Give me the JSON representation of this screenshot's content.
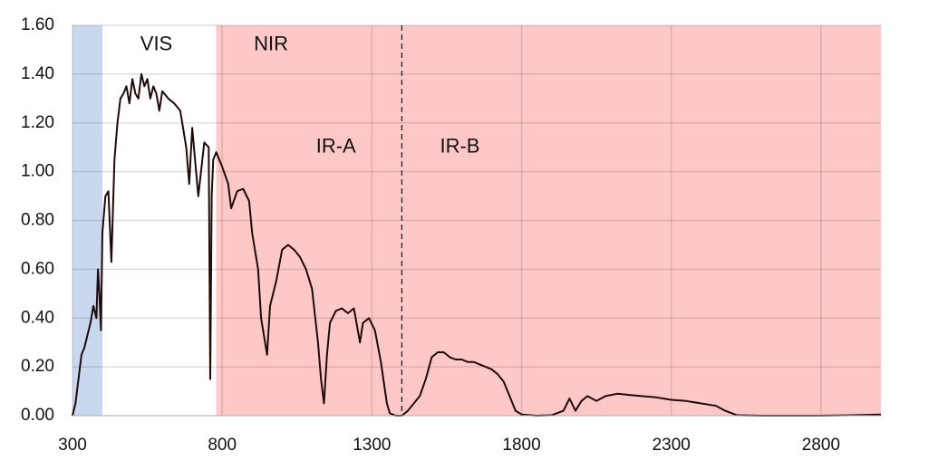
{
  "chart_data": {
    "type": "line",
    "color": "#1f0a0a",
    "x": [
      300,
      310,
      320,
      330,
      340,
      350,
      360,
      370,
      380,
      385,
      390,
      395,
      400,
      410,
      420,
      430,
      440,
      450,
      460,
      470,
      480,
      490,
      500,
      510,
      520,
      530,
      540,
      550,
      560,
      570,
      580,
      590,
      600,
      620,
      640,
      660,
      680,
      690,
      700,
      720,
      740,
      755,
      760,
      765,
      770,
      780,
      800,
      820,
      830,
      850,
      870,
      890,
      900,
      920,
      930,
      950,
      960,
      980,
      1000,
      1020,
      1040,
      1060,
      1080,
      1100,
      1120,
      1130,
      1140,
      1150,
      1160,
      1180,
      1200,
      1220,
      1240,
      1260,
      1270,
      1290,
      1310,
      1330,
      1350,
      1360,
      1380,
      1400,
      1420,
      1440,
      1460,
      1480,
      1500,
      1520,
      1540,
      1560,
      1580,
      1600,
      1620,
      1640,
      1660,
      1680,
      1700,
      1720,
      1740,
      1760,
      1780,
      1800,
      1850,
      1900,
      1940,
      1960,
      1980,
      2000,
      2020,
      2050,
      2080,
      2120,
      2160,
      2200,
      2250,
      2300,
      2350,
      2400,
      2450,
      2480,
      2520,
      2600,
      2700,
      2800,
      2900,
      3000
    ],
    "values": [
      0,
      0.05,
      0.15,
      0.25,
      0.28,
      0.33,
      0.38,
      0.45,
      0.4,
      0.6,
      0.5,
      0.35,
      0.75,
      0.9,
      0.92,
      0.63,
      1.05,
      1.2,
      1.3,
      1.32,
      1.35,
      1.28,
      1.38,
      1.32,
      1.3,
      1.4,
      1.35,
      1.38,
      1.3,
      1.35,
      1.32,
      1.25,
      1.33,
      1.3,
      1.28,
      1.25,
      1.1,
      0.95,
      1.18,
      0.9,
      1.12,
      1.1,
      0.15,
      0.9,
      1.05,
      1.08,
      1.02,
      0.95,
      0.85,
      0.92,
      0.93,
      0.88,
      0.75,
      0.6,
      0.4,
      0.25,
      0.45,
      0.55,
      0.68,
      0.7,
      0.68,
      0.65,
      0.6,
      0.52,
      0.3,
      0.15,
      0.05,
      0.25,
      0.38,
      0.43,
      0.44,
      0.42,
      0.44,
      0.3,
      0.38,
      0.4,
      0.35,
      0.22,
      0.05,
      0.01,
      0,
      0,
      0.02,
      0.05,
      0.08,
      0.15,
      0.24,
      0.26,
      0.26,
      0.24,
      0.23,
      0.23,
      0.22,
      0.22,
      0.21,
      0.2,
      0.19,
      0.17,
      0.14,
      0.08,
      0.02,
      0.005,
      0,
      0.002,
      0.02,
      0.07,
      0.02,
      0.06,
      0.08,
      0.06,
      0.08,
      0.09,
      0.085,
      0.08,
      0.075,
      0.065,
      0.06,
      0.05,
      0.04,
      0.02,
      0.002,
      0,
      0,
      0,
      0.002,
      0.005
    ],
    "xlim": [
      300,
      3000
    ],
    "xticks": [
      300,
      800,
      1300,
      1800,
      2300,
      2800
    ],
    "ylim": [
      0,
      1.6
    ],
    "yticks": [
      {
        "value": 0,
        "label": "0.00"
      },
      {
        "value": 0.2,
        "label": "0.20"
      },
      {
        "value": 0.4,
        "label": "0.40"
      },
      {
        "value": 0.6,
        "label": "0.60"
      },
      {
        "value": 0.8,
        "label": "0.80"
      },
      {
        "value": 1.0,
        "label": "1.00"
      },
      {
        "value": 1.2,
        "label": "1.20"
      },
      {
        "value": 1.4,
        "label": "1.40"
      },
      {
        "value": 1.6,
        "label": "1.60"
      }
    ],
    "grid": true,
    "regions": [
      {
        "start": 300,
        "end": 400,
        "color": "#c9d8ef"
      },
      {
        "start": 780,
        "end": 3000,
        "color": "#ffc8c8"
      }
    ],
    "vline": {
      "x": 1400,
      "style": "dashed"
    },
    "annotations": [
      {
        "text": "VIS",
        "x": 580,
        "y": 1.52
      },
      {
        "text": "NIR",
        "x": 963,
        "y": 1.52
      },
      {
        "text": "IR-A",
        "x": 1180,
        "y": 1.1
      },
      {
        "text": "IR-B",
        "x": 1594,
        "y": 1.1
      }
    ]
  }
}
